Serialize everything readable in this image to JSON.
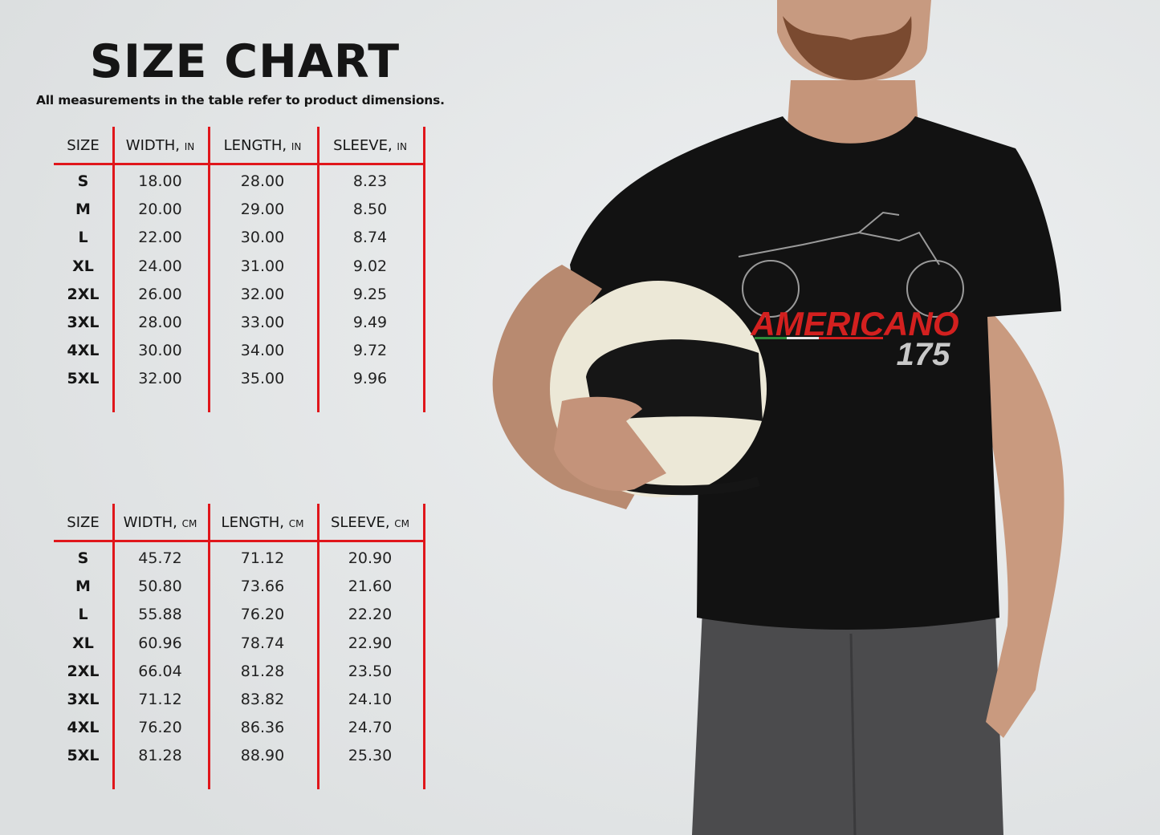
{
  "title": "SIZE CHART",
  "subtitle": "All measurements in the table refer to product dimensions.",
  "colors": {
    "accent": "#e0161b",
    "background": "#e3e5e6",
    "shirt": "#111111",
    "print_red": "#d3201f"
  },
  "shirt_print": {
    "text": "AMERICANO",
    "number": "175"
  },
  "tables": [
    {
      "headers": [
        {
          "label": "SIZE",
          "unit": ""
        },
        {
          "label": "WIDTH,",
          "unit": "IN"
        },
        {
          "label": "LENGTH,",
          "unit": "IN"
        },
        {
          "label": "SLEEVE,",
          "unit": "IN"
        }
      ],
      "rows": [
        [
          "S",
          "18.00",
          "28.00",
          "8.23"
        ],
        [
          "M",
          "20.00",
          "29.00",
          "8.50"
        ],
        [
          "L",
          "22.00",
          "30.00",
          "8.74"
        ],
        [
          "XL",
          "24.00",
          "31.00",
          "9.02"
        ],
        [
          "2XL",
          "26.00",
          "32.00",
          "9.25"
        ],
        [
          "3XL",
          "28.00",
          "33.00",
          "9.49"
        ],
        [
          "4XL",
          "30.00",
          "34.00",
          "9.72"
        ],
        [
          "5XL",
          "32.00",
          "35.00",
          "9.96"
        ]
      ]
    },
    {
      "headers": [
        {
          "label": "SIZE",
          "unit": ""
        },
        {
          "label": "WIDTH,",
          "unit": "CM"
        },
        {
          "label": "LENGTH,",
          "unit": "CM"
        },
        {
          "label": "SLEEVE,",
          "unit": "CM"
        }
      ],
      "rows": [
        [
          "S",
          "45.72",
          "71.12",
          "20.90"
        ],
        [
          "M",
          "50.80",
          "73.66",
          "21.60"
        ],
        [
          "L",
          "55.88",
          "76.20",
          "22.20"
        ],
        [
          "XL",
          "60.96",
          "78.74",
          "22.90"
        ],
        [
          "2XL",
          "66.04",
          "81.28",
          "23.50"
        ],
        [
          "3XL",
          "71.12",
          "83.82",
          "24.10"
        ],
        [
          "4XL",
          "76.20",
          "86.36",
          "24.70"
        ],
        [
          "5XL",
          "81.28",
          "88.90",
          "25.30"
        ]
      ]
    }
  ]
}
